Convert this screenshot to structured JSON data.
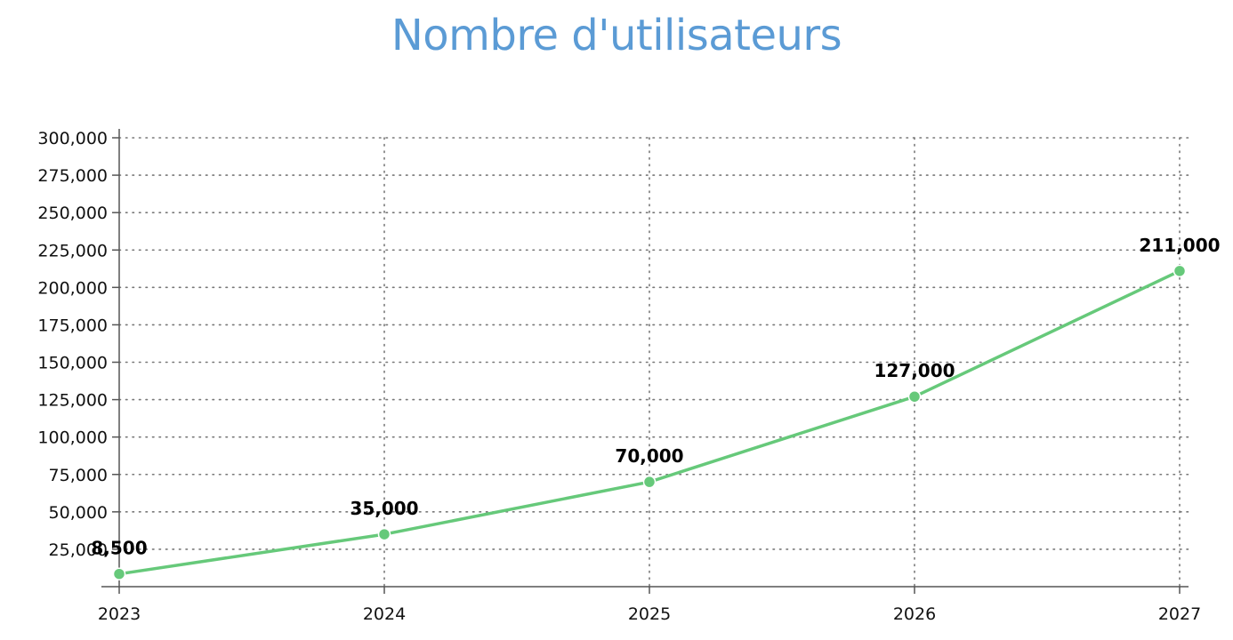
{
  "colors": {
    "title": "#5b9bd5",
    "series": "#66c97a",
    "axis": "#555555",
    "grid": "#777777"
  },
  "chart_data": {
    "type": "line",
    "title": "Nombre d'utilisateurs",
    "xlabel": "",
    "ylabel": "",
    "x": [
      "2023",
      "2024",
      "2025",
      "2026",
      "2027"
    ],
    "series": [
      {
        "values": [
          8500,
          35000,
          70000,
          127000,
          211000
        ],
        "data_labels": [
          "8,500",
          "35,000",
          "70,000",
          "127,000",
          "211,000"
        ]
      }
    ],
    "yticks": [
      25000,
      50000,
      75000,
      100000,
      125000,
      150000,
      175000,
      200000,
      225000,
      250000,
      275000,
      300000
    ],
    "ytick_labels": [
      "25,000",
      "50,000",
      "75,000",
      "100,000",
      "125,000",
      "150,000",
      "175,000",
      "200,000",
      "225,000",
      "250,000",
      "275,000",
      "300,000"
    ],
    "ylim": [
      0,
      300000
    ],
    "grid": true,
    "grid_style": "dotted",
    "legend": "none"
  }
}
